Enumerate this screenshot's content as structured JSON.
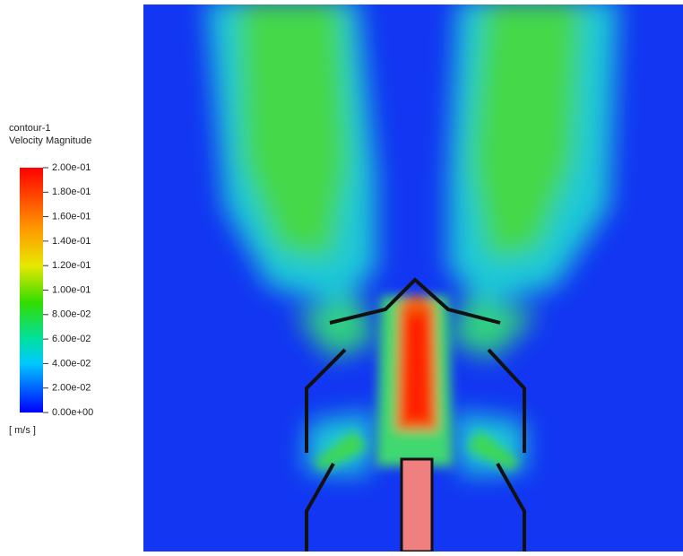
{
  "legend": {
    "title": "contour-1",
    "subtitle": "Velocity Magnitude",
    "ticks": [
      "2.00e-01",
      "1.80e-01",
      "1.60e-01",
      "1.40e-01",
      "1.20e-01",
      "1.00e-01",
      "8.00e-02",
      "6.00e-02",
      "4.00e-02",
      "2.00e-02",
      "0.00e+00"
    ],
    "unit": "[ m/s ]"
  }
}
